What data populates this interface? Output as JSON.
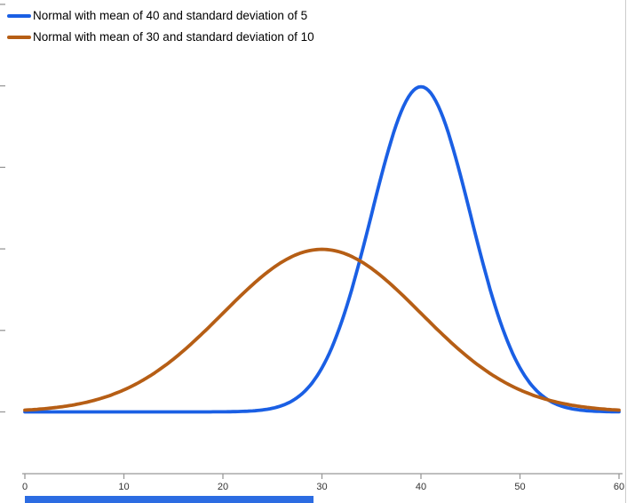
{
  "chart_data": {
    "type": "line",
    "title": "",
    "xlabel": "",
    "ylabel": "",
    "xlim": [
      0,
      60
    ],
    "ylim": [
      -0.015,
      0.101
    ],
    "x_ticks": [
      0,
      10,
      20,
      30,
      40,
      50,
      60
    ],
    "y_ticks": [
      0,
      0.02,
      0.04,
      0.06,
      0.08,
      0.1
    ],
    "grid": false,
    "legend_position": "top-left",
    "series": [
      {
        "name": "Normal with mean of 40 and standard deviation of 5",
        "color": "#1a5fe4",
        "distribution": "normal",
        "mean": 40,
        "sd": 5,
        "x": [
          0,
          5,
          10,
          15,
          20,
          25,
          30,
          35,
          40,
          45,
          50,
          55,
          60
        ],
        "y": [
          0,
          0,
          0,
          0,
          3e-05,
          0.0009,
          0.0108,
          0.0484,
          0.0798,
          0.0484,
          0.0108,
          0.0009,
          3e-05
        ]
      },
      {
        "name": "Normal with mean of 30 and standard deviation of 10",
        "color": "#b65e15",
        "distribution": "normal",
        "mean": 30,
        "sd": 10,
        "x": [
          0,
          5,
          10,
          15,
          20,
          25,
          30,
          35,
          40,
          45,
          50,
          55,
          60
        ],
        "y": [
          0.0004,
          0.0018,
          0.0054,
          0.013,
          0.0242,
          0.0352,
          0.0399,
          0.0352,
          0.0242,
          0.013,
          0.0054,
          0.0018,
          0.0004
        ]
      }
    ]
  },
  "ui": {
    "axis_color": "#999999",
    "tick_label_color": "#333333",
    "bottom_bar_color": "#2c6ce2"
  }
}
